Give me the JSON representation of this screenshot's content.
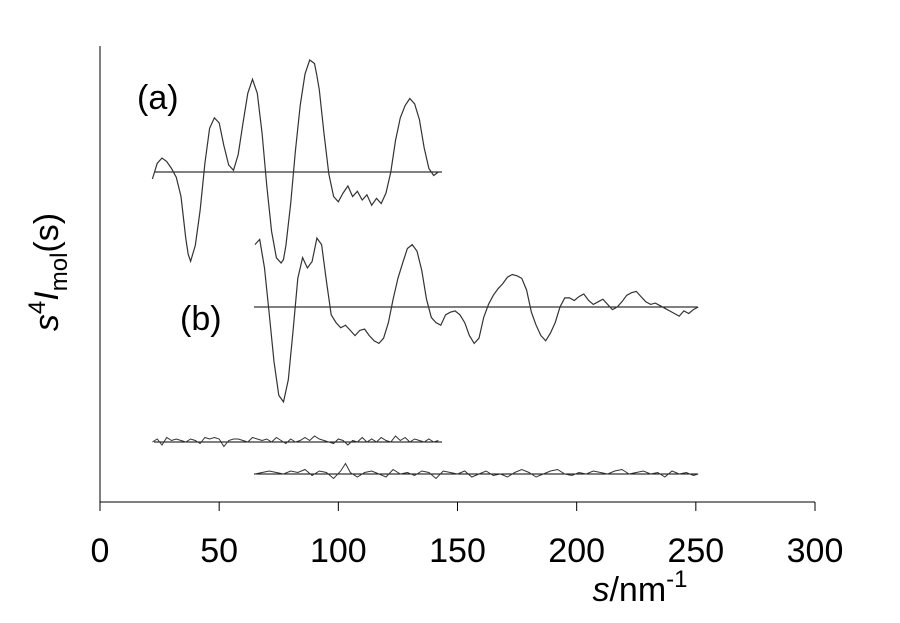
{
  "chart_data": {
    "type": "line",
    "title": "",
    "xlabel": {
      "italic": "s",
      "unit": "/nm",
      "exp": "-1"
    },
    "ylabel": {
      "s": "s",
      "power": "4",
      "I": "I",
      "sub": "mol",
      "arg": "(s)"
    },
    "xlim": [
      0,
      300
    ],
    "xticks": [
      "0",
      "50",
      "100",
      "150",
      "200",
      "250",
      "300"
    ],
    "grid": false,
    "panel_labels": {
      "a": "(a)",
      "b": "(b)"
    },
    "series": [
      {
        "label": "(a)",
        "kind": "intensity",
        "x": [
          22,
          24,
          26,
          28,
          30,
          32,
          34,
          36,
          37,
          38,
          40,
          42,
          44,
          46,
          48,
          50,
          52,
          54,
          56,
          58,
          60,
          62,
          64,
          66,
          68,
          70,
          72,
          74,
          76,
          77,
          78,
          80,
          82,
          84,
          86,
          88,
          90,
          91,
          92,
          94,
          96,
          98,
          100,
          102,
          104,
          106,
          108,
          110,
          112,
          114,
          116,
          118,
          120,
          122,
          124,
          126,
          128,
          130,
          132,
          134,
          136,
          138,
          140,
          142
        ],
        "y": [
          -0.04,
          0.05,
          0.08,
          0.06,
          0.02,
          -0.03,
          -0.14,
          -0.38,
          -0.47,
          -0.51,
          -0.42,
          -0.22,
          0.05,
          0.25,
          0.31,
          0.28,
          0.15,
          0.04,
          0.01,
          0.1,
          0.28,
          0.45,
          0.53,
          0.45,
          0.22,
          -0.08,
          -0.34,
          -0.49,
          -0.52,
          -0.5,
          -0.42,
          -0.18,
          0.12,
          0.38,
          0.56,
          0.64,
          0.62,
          0.55,
          0.47,
          0.22,
          -0.01,
          -0.14,
          -0.17,
          -0.12,
          -0.08,
          -0.14,
          -0.11,
          -0.16,
          -0.13,
          -0.19,
          -0.15,
          -0.18,
          -0.12,
          0.0,
          0.18,
          0.31,
          0.38,
          0.42,
          0.39,
          0.3,
          0.14,
          0.02,
          -0.02,
          0.0
        ]
      },
      {
        "label": "(b)",
        "kind": "intensity",
        "x": [
          65,
          67,
          69,
          71,
          73,
          75,
          77,
          79,
          81,
          83,
          85,
          87,
          89,
          91,
          93,
          95,
          97,
          99,
          101,
          103,
          105,
          107,
          109,
          111,
          113,
          115,
          117,
          119,
          121,
          123,
          125,
          127,
          129,
          131,
          133,
          135,
          137,
          139,
          141,
          143,
          145,
          147,
          149,
          151,
          153,
          155,
          157,
          159,
          161,
          163,
          165,
          167,
          169,
          171,
          173,
          175,
          177,
          179,
          181,
          183,
          185,
          187,
          189,
          191,
          193,
          195,
          197,
          199,
          201,
          203,
          205,
          207,
          209,
          211,
          213,
          215,
          217,
          219,
          221,
          223,
          225,
          227,
          229,
          231,
          233,
          235,
          237,
          239,
          241,
          243,
          245,
          247,
          249,
          251
        ],
        "y": [
          0.48,
          0.52,
          0.3,
          -0.05,
          -0.42,
          -0.68,
          -0.73,
          -0.56,
          -0.18,
          0.22,
          0.38,
          0.3,
          0.35,
          0.53,
          0.48,
          0.2,
          -0.06,
          -0.12,
          -0.16,
          -0.14,
          -0.18,
          -0.22,
          -0.18,
          -0.17,
          -0.22,
          -0.26,
          -0.28,
          -0.24,
          -0.12,
          0.06,
          0.22,
          0.34,
          0.45,
          0.48,
          0.43,
          0.28,
          0.06,
          -0.08,
          -0.12,
          -0.14,
          -0.06,
          -0.04,
          -0.03,
          -0.06,
          -0.12,
          -0.22,
          -0.28,
          -0.24,
          -0.08,
          0.02,
          0.09,
          0.14,
          0.18,
          0.23,
          0.25,
          0.24,
          0.22,
          0.13,
          -0.04,
          -0.14,
          -0.22,
          -0.26,
          -0.2,
          -0.12,
          0.0,
          0.07,
          0.07,
          0.05,
          0.08,
          0.1,
          0.05,
          0.02,
          0.04,
          0.06,
          0.02,
          -0.02,
          0.0,
          0.04,
          0.09,
          0.11,
          0.12,
          0.08,
          0.04,
          0.02,
          0.03,
          0.01,
          -0.01,
          -0.03,
          -0.05,
          -0.07,
          -0.03,
          -0.05,
          -0.02,
          0.0
        ]
      },
      {
        "label": "(a) residual",
        "kind": "residual",
        "x": [
          22,
          24,
          26,
          28,
          30,
          32,
          34,
          36,
          38,
          40,
          42,
          44,
          46,
          48,
          50,
          52,
          54,
          56,
          58,
          60,
          62,
          64,
          66,
          68,
          70,
          72,
          74,
          76,
          78,
          80,
          82,
          84,
          86,
          88,
          90,
          92,
          94,
          96,
          98,
          100,
          102,
          104,
          106,
          108,
          110,
          112,
          114,
          116,
          118,
          120,
          122,
          124,
          126,
          128,
          130,
          132,
          134,
          136,
          138,
          140,
          142
        ],
        "y": [
          0.0,
          0.02,
          -0.02,
          0.03,
          0.01,
          0.02,
          0.01,
          0.0,
          0.02,
          0.01,
          -0.01,
          0.03,
          0.02,
          0.03,
          0.02,
          -0.03,
          0.01,
          0.02,
          0.02,
          0.01,
          0.0,
          0.03,
          0.02,
          0.01,
          0.02,
          0.0,
          0.03,
          0.01,
          -0.01,
          0.02,
          0.0,
          0.01,
          0.03,
          0.01,
          0.04,
          0.02,
          0.01,
          0.0,
          -0.01,
          0.02,
          0.01,
          -0.02,
          0.01,
          0.0,
          0.03,
          0.0,
          0.02,
          0.0,
          0.03,
          0.01,
          0.0,
          0.04,
          0.01,
          0.03,
          0.0,
          0.02,
          0.01,
          0.0,
          0.02,
          0.0,
          0.01
        ]
      },
      {
        "label": "(b) residual",
        "kind": "residual",
        "x": [
          65,
          68,
          71,
          74,
          77,
          80,
          83,
          86,
          89,
          92,
          95,
          98,
          101,
          103,
          105,
          108,
          111,
          114,
          117,
          120,
          123,
          126,
          129,
          132,
          135,
          138,
          141,
          144,
          147,
          150,
          153,
          156,
          159,
          162,
          165,
          168,
          171,
          174,
          177,
          180,
          183,
          186,
          189,
          192,
          195,
          198,
          201,
          204,
          207,
          210,
          213,
          216,
          219,
          222,
          225,
          228,
          231,
          234,
          237,
          240,
          243,
          246,
          249,
          251
        ],
        "y": [
          0.0,
          0.01,
          0.02,
          0.01,
          0.0,
          0.02,
          0.01,
          0.03,
          -0.01,
          0.02,
          0.01,
          -0.03,
          0.02,
          0.07,
          0.01,
          -0.02,
          0.01,
          0.02,
          0.0,
          -0.02,
          0.03,
          0.0,
          0.01,
          -0.01,
          0.02,
          0.01,
          -0.03,
          0.02,
          0.01,
          0.0,
          0.02,
          -0.02,
          0.0,
          0.02,
          -0.01,
          0.0,
          -0.02,
          0.01,
          0.03,
          0.01,
          -0.02,
          0.0,
          0.02,
          0.03,
          0.0,
          -0.01,
          0.01,
          0.0,
          0.02,
          0.01,
          0.0,
          0.02,
          0.03,
          0.0,
          0.01,
          0.02,
          0.0,
          0.01,
          -0.02,
          0.02,
          0.0,
          0.01,
          -0.01,
          0.0
        ]
      }
    ]
  }
}
